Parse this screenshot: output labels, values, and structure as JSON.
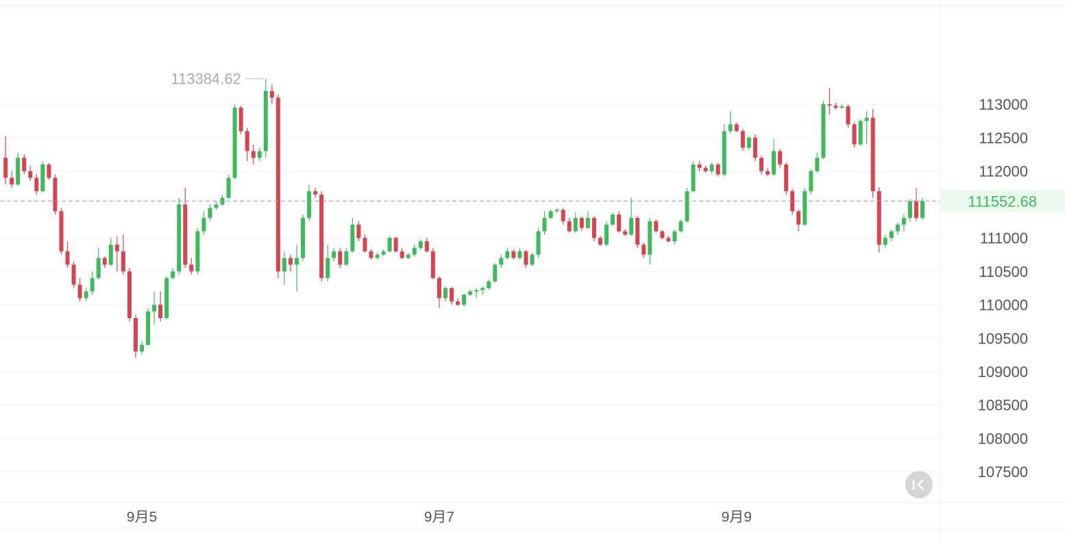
{
  "chart_data": {
    "type": "candlestick",
    "categories": [
      null,
      null,
      null,
      null,
      null,
      null,
      null,
      null,
      null,
      null,
      null,
      null,
      null,
      null,
      null,
      null,
      null,
      null,
      null,
      null,
      null,
      null,
      "9月5",
      null,
      null,
      null,
      null,
      null,
      null,
      null,
      null,
      null,
      null,
      null,
      null,
      null,
      null,
      null,
      null,
      null,
      null,
      null,
      null,
      null,
      null,
      null,
      null,
      null,
      null,
      null,
      null,
      null,
      null,
      null,
      null,
      null,
      null,
      null,
      null,
      null,
      null,
      null,
      null,
      null,
      null,
      null,
      null,
      null,
      null,
      null,
      "9月7",
      null,
      null,
      null,
      null,
      null,
      null,
      null,
      null,
      null,
      null,
      null,
      null,
      null,
      null,
      null,
      null,
      null,
      null,
      null,
      null,
      null,
      null,
      null,
      null,
      null,
      null,
      null,
      null,
      null,
      null,
      null,
      null,
      null,
      null,
      null,
      null,
      null,
      null,
      null,
      null,
      null,
      null,
      null,
      null,
      null,
      null,
      null,
      "9月9",
      null,
      null,
      null,
      null,
      null,
      null,
      null,
      null,
      null,
      null,
      null,
      null,
      null,
      null,
      null,
      null,
      null,
      null,
      null,
      null,
      null,
      null,
      null,
      null,
      null,
      null,
      null,
      null,
      null,
      null
    ],
    "open": [
      112200,
      111900,
      111800,
      112200,
      112000,
      111900,
      111700,
      112100,
      111900,
      111400,
      110800,
      110600,
      110300,
      110100,
      110200,
      110400,
      110700,
      110600,
      110900,
      110800,
      110500,
      109800,
      109300,
      109400,
      109900,
      110000,
      109800,
      110400,
      110500,
      111500,
      110600,
      110500,
      111100,
      111300,
      111450,
      111500,
      111600,
      111900,
      112950,
      112600,
      112300,
      112200,
      112300,
      113200,
      113100,
      110500,
      110700,
      110600,
      110700,
      111300,
      111700,
      111650,
      110400,
      110700,
      110800,
      110600,
      110800,
      111200,
      111000,
      110800,
      110700,
      110750,
      110800,
      111000,
      110800,
      110700,
      110750,
      110850,
      110950,
      110800,
      110400,
      110100,
      110250,
      110050,
      110000,
      110150,
      110200,
      110220,
      110250,
      110350,
      110600,
      110700,
      110800,
      110700,
      110800,
      110600,
      110750,
      111100,
      111300,
      111400,
      111420,
      111250,
      111100,
      111300,
      111150,
      111300,
      111000,
      110900,
      111200,
      111350,
      111100,
      111050,
      111300,
      110900,
      110750,
      111250,
      111100,
      111000,
      110950,
      111100,
      111250,
      111700,
      112100,
      112050,
      112000,
      112100,
      111950,
      112600,
      112700,
      112600,
      112350,
      112500,
      112200,
      112000,
      111950,
      112300,
      112100,
      111700,
      111400,
      111200,
      111700,
      112000,
      112200,
      113000,
      112980,
      112950,
      112970,
      112700,
      112400,
      112750,
      112800,
      111700,
      110900,
      111000,
      111100,
      111200,
      111300,
      111550,
      111300
    ],
    "high": [
      112520,
      112000,
      112280,
      112250,
      112080,
      111960,
      112150,
      112120,
      111950,
      111450,
      110950,
      110650,
      110400,
      110250,
      110500,
      110850,
      110720,
      111000,
      111020,
      111050,
      110550,
      109850,
      109450,
      109950,
      110200,
      110200,
      110420,
      110550,
      111600,
      111750,
      110700,
      111150,
      111400,
      111500,
      111550,
      111650,
      111950,
      113000,
      112980,
      112650,
      112400,
      112350,
      113384.62,
      113300,
      113150,
      110800,
      110750,
      110900,
      111350,
      111800,
      111750,
      111700,
      110900,
      110850,
      110850,
      110850,
      111300,
      111250,
      111050,
      110830,
      110780,
      110830,
      111030,
      111020,
      110850,
      110780,
      110900,
      110980,
      111000,
      110850,
      110420,
      110270,
      110270,
      110100,
      110170,
      110230,
      110250,
      110280,
      110380,
      110620,
      110750,
      110850,
      110830,
      110850,
      110820,
      110780,
      111150,
      111400,
      111420,
      111450,
      111450,
      111300,
      111380,
      111320,
      111400,
      111330,
      111030,
      111250,
      111380,
      111400,
      111130,
      111600,
      111330,
      110930,
      111300,
      111280,
      111120,
      111030,
      111130,
      111280,
      111750,
      112150,
      112150,
      112080,
      112130,
      112130,
      112700,
      112900,
      112730,
      112630,
      112530,
      112550,
      112230,
      112050,
      112480,
      112330,
      112130,
      111730,
      111430,
      111750,
      112030,
      112280,
      113050,
      113250,
      113020,
      113000,
      113000,
      112730,
      112780,
      112900,
      112930,
      111760,
      111050,
      111120,
      111230,
      111350,
      111580,
      111750,
      111600
    ],
    "low": [
      111800,
      111750,
      111780,
      111950,
      111850,
      111650,
      111680,
      111870,
      111350,
      110750,
      110550,
      110250,
      110050,
      110060,
      110150,
      110380,
      110550,
      110580,
      110500,
      110450,
      109750,
      109200,
      109250,
      109380,
      109700,
      109750,
      109780,
      110380,
      110450,
      110550,
      110450,
      110450,
      111050,
      111250,
      111420,
      111480,
      111580,
      111880,
      112550,
      112150,
      112100,
      112150,
      112200,
      113000,
      110400,
      110300,
      110500,
      110200,
      110650,
      111250,
      111600,
      110350,
      110350,
      110650,
      110550,
      110580,
      110780,
      110950,
      110780,
      110680,
      110680,
      110730,
      110780,
      110780,
      110680,
      110680,
      110720,
      110820,
      110780,
      110380,
      109950,
      110050,
      110000,
      109980,
      109980,
      110130,
      110100,
      110150,
      110230,
      110330,
      110550,
      110680,
      110680,
      110680,
      110550,
      110580,
      110700,
      111050,
      111280,
      111380,
      111200,
      111080,
      111080,
      111100,
      111130,
      110950,
      110880,
      110880,
      111180,
      111080,
      111030,
      111030,
      110850,
      110700,
      110600,
      111080,
      110980,
      110930,
      110900,
      111080,
      111230,
      111680,
      112000,
      111980,
      111970,
      111920,
      111920,
      112560,
      112580,
      112300,
      112320,
      112150,
      111950,
      111920,
      111930,
      112050,
      111650,
      111350,
      111100,
      111180,
      111650,
      111980,
      112180,
      112850,
      112920,
      112930,
      112650,
      112350,
      112380,
      112400,
      111600,
      110780,
      110850,
      110950,
      111050,
      111100,
      111250,
      111250,
      111270
    ],
    "close": [
      111900,
      111800,
      112200,
      112000,
      111900,
      111700,
      112100,
      111900,
      111400,
      110800,
      110600,
      110300,
      110100,
      110200,
      110400,
      110700,
      110600,
      110900,
      110800,
      110500,
      109800,
      109300,
      109400,
      109900,
      110000,
      109800,
      110400,
      110500,
      111500,
      110600,
      110500,
      111100,
      111300,
      111450,
      111500,
      111600,
      111900,
      112950,
      112600,
      112300,
      112200,
      112300,
      113200,
      113100,
      110500,
      110700,
      110600,
      110700,
      111300,
      111700,
      111650,
      110400,
      110700,
      110800,
      110600,
      110800,
      111200,
      111000,
      110800,
      110700,
      110750,
      110800,
      111000,
      110800,
      110700,
      110750,
      110850,
      110950,
      110800,
      110400,
      110100,
      110250,
      110050,
      110000,
      110150,
      110200,
      110220,
      110250,
      110350,
      110600,
      110700,
      110800,
      110700,
      110800,
      110600,
      110750,
      111100,
      111300,
      111400,
      111420,
      111250,
      111100,
      111300,
      111150,
      111300,
      111000,
      110900,
      111200,
      111350,
      111100,
      111050,
      111300,
      110900,
      110750,
      111250,
      111100,
      111000,
      110950,
      111100,
      111250,
      111700,
      112100,
      112050,
      112000,
      112100,
      111950,
      112600,
      112700,
      112600,
      112350,
      112500,
      112200,
      112000,
      111950,
      112300,
      112100,
      111700,
      111400,
      111200,
      111700,
      112000,
      112200,
      113000,
      112980,
      112950,
      112970,
      112700,
      112400,
      112750,
      112800,
      111700,
      110900,
      111000,
      111100,
      111200,
      111300,
      111550,
      111300,
      111552.68
    ],
    "up_color": "#3dbb5c",
    "down_color": "#d9424f",
    "ylim": [
      107040,
      114480
    ],
    "yticks": [
      107500,
      108000,
      108500,
      109000,
      109500,
      110000,
      110500,
      111000,
      111500,
      112000,
      112500,
      113000
    ],
    "grid": true
  }
}
